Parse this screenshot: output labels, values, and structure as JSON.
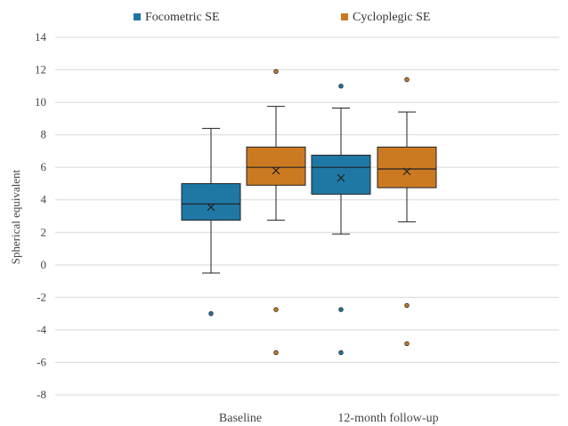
{
  "chart_data": {
    "type": "box",
    "categories": [
      "Baseline",
      "12-month follow-up"
    ],
    "ylabel": "Spherical equivalent",
    "ylim": [
      -8,
      14
    ],
    "yticks": [
      14,
      12,
      10,
      8,
      6,
      4,
      2,
      0,
      -2,
      -4,
      -6,
      -8
    ],
    "grid": true,
    "legend_position": "top",
    "series": [
      {
        "name": "Focometric SE",
        "color": "#1f77a4",
        "boxes": [
          {
            "category": "Baseline",
            "min": -0.5,
            "q1": 2.75,
            "median": 3.75,
            "q3": 5.0,
            "max": 8.4,
            "mean": 3.55,
            "outliers": [
              -3.0
            ]
          },
          {
            "category": "12-month follow-up",
            "min": 1.9,
            "q1": 4.35,
            "median": 6.0,
            "q3": 6.75,
            "max": 9.65,
            "mean": 5.35,
            "outliers": [
              11.0,
              -2.75,
              -5.4
            ]
          }
        ]
      },
      {
        "name": "Cycloplegic SE",
        "color": "#cc7a22",
        "boxes": [
          {
            "category": "Baseline",
            "min": 2.75,
            "q1": 4.9,
            "median": 6.0,
            "q3": 7.25,
            "max": 9.75,
            "mean": 5.8,
            "outliers": [
              11.9,
              -2.75,
              -5.4
            ]
          },
          {
            "category": "12-month follow-up",
            "min": 2.65,
            "q1": 4.75,
            "median": 5.9,
            "q3": 7.25,
            "max": 9.4,
            "mean": 5.75,
            "outliers": [
              11.4,
              -2.5,
              -4.85
            ]
          }
        ]
      }
    ]
  }
}
